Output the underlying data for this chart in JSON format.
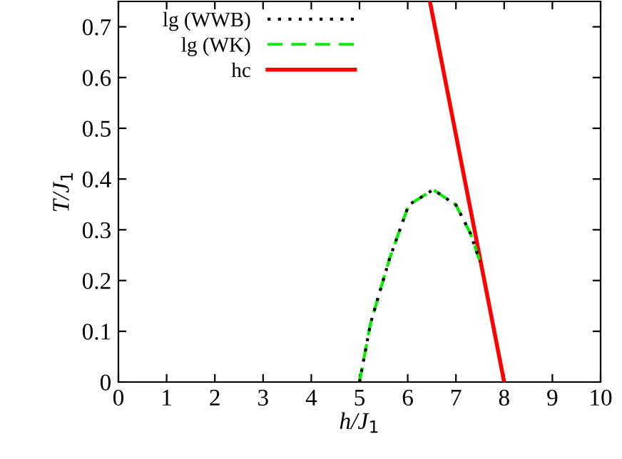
{
  "chart_data": {
    "type": "line",
    "xlabel": "h/J$_{1}$",
    "ylabel": "T/J$_{1}$",
    "xlim": [
      0,
      10
    ],
    "ylim": [
      0,
      0.75
    ],
    "xticks": [
      0,
      1,
      2,
      3,
      4,
      5,
      6,
      7,
      8,
      9,
      10
    ],
    "yticks": [
      0,
      0.1,
      0.2,
      0.3,
      0.4,
      0.5,
      0.6,
      0.7
    ],
    "legend": "top left",
    "grid": false,
    "series": [
      {
        "name": "lg (WWB)",
        "color": "#000000",
        "line_style": "dotted",
        "x": [
          5.0,
          5.23,
          5.62,
          6.02,
          6.53,
          7.0,
          7.3,
          7.5
        ],
        "values": [
          0,
          0.116,
          0.242,
          0.349,
          0.379,
          0.349,
          0.293,
          0.237
        ]
      },
      {
        "name": "lg (WK)",
        "color": "#00ee00",
        "line_style": "dashed",
        "x": [
          5.0,
          5.23,
          5.62,
          6.02,
          6.53,
          7.0,
          7.3,
          7.5
        ],
        "values": [
          0,
          0.116,
          0.242,
          0.349,
          0.379,
          0.349,
          0.293,
          0.237
        ]
      },
      {
        "name": "hc",
        "color": "#ff0000",
        "line_style": "solid",
        "x": [
          6.46,
          8.0
        ],
        "values": [
          0.75,
          0
        ]
      }
    ]
  }
}
